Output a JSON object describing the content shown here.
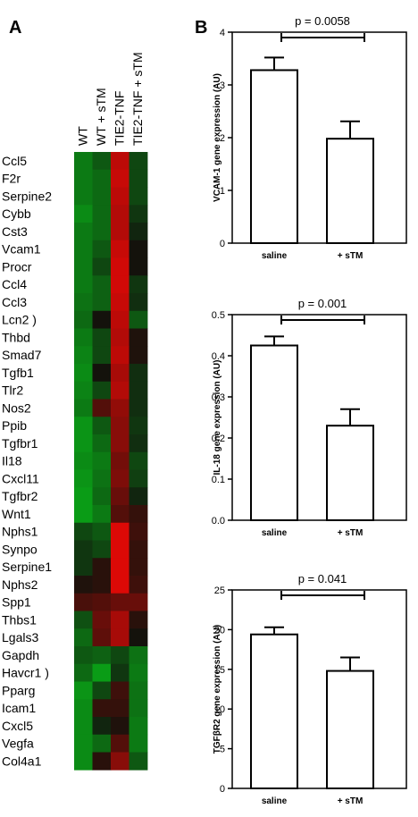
{
  "panel_labels": {
    "a": "A",
    "b": "B"
  },
  "colors": {
    "bar_fill": "#ffffff",
    "stroke": "#000000"
  },
  "heatmap": {
    "type": "heatmap",
    "columns": [
      "WT",
      "WT + sTM",
      "TIE2-TNF",
      "TIE2-TNF + sTM"
    ],
    "genes": [
      "Ccl5",
      "F2r",
      "Serpine2",
      "Cybb",
      "Cst3",
      "Vcam1",
      "Procr",
      "Ccl4",
      "Ccl3",
      "Lcn2 )",
      "Thbd",
      "Smad7",
      "Tgfb1",
      "Tlr2",
      "Nos2",
      "Ppib",
      "Tgfbr1",
      "Il18",
      "Cxcl11",
      "Tgfbr2",
      "Wnt1",
      "Nphs1",
      "Synpo",
      "Serpine1",
      "Nphs2",
      "Spp1",
      "Thbs1",
      "Lgals3",
      "Gapdh",
      "Havcr1 )",
      "Pparg",
      "Icam1",
      "Cxcl5",
      "Vegfa",
      "Col4a1"
    ],
    "values": [
      [
        -0.6,
        -0.4,
        0.8,
        -0.3
      ],
      [
        -0.6,
        -0.5,
        0.85,
        -0.3
      ],
      [
        -0.6,
        -0.5,
        0.8,
        -0.3
      ],
      [
        -0.7,
        -0.5,
        0.75,
        -0.2
      ],
      [
        -0.6,
        -0.5,
        0.75,
        -0.1
      ],
      [
        -0.6,
        -0.4,
        0.85,
        0.0
      ],
      [
        -0.6,
        -0.3,
        0.9,
        0.0
      ],
      [
        -0.6,
        -0.45,
        0.9,
        -0.2
      ],
      [
        -0.55,
        -0.45,
        0.85,
        -0.15
      ],
      [
        -0.5,
        0.0,
        0.8,
        -0.4
      ],
      [
        -0.6,
        -0.3,
        0.75,
        0.05
      ],
      [
        -0.65,
        -0.3,
        0.8,
        0.05
      ],
      [
        -0.7,
        0.0,
        0.7,
        -0.15
      ],
      [
        -0.65,
        -0.3,
        0.75,
        -0.15
      ],
      [
        -0.6,
        0.3,
        0.6,
        -0.15
      ],
      [
        -0.75,
        -0.4,
        0.55,
        -0.2
      ],
      [
        -0.75,
        -0.5,
        0.55,
        -0.15
      ],
      [
        -0.7,
        -0.6,
        0.45,
        -0.3
      ],
      [
        -0.75,
        -0.55,
        0.5,
        -0.25
      ],
      [
        -0.8,
        -0.5,
        0.4,
        -0.1
      ],
      [
        -0.8,
        -0.6,
        0.3,
        0.15
      ],
      [
        -0.3,
        -0.4,
        0.95,
        0.2
      ],
      [
        -0.2,
        -0.3,
        0.95,
        0.15
      ],
      [
        -0.2,
        0.1,
        0.95,
        0.15
      ],
      [
        0.05,
        0.1,
        0.95,
        0.2
      ],
      [
        0.25,
        0.3,
        0.4,
        0.4
      ],
      [
        -0.35,
        0.4,
        0.7,
        0.1
      ],
      [
        -0.5,
        0.35,
        0.7,
        0.0
      ],
      [
        -0.4,
        -0.45,
        -0.3,
        -0.55
      ],
      [
        -0.5,
        -0.8,
        -0.2,
        -0.6
      ],
      [
        -0.75,
        -0.3,
        0.2,
        -0.55
      ],
      [
        -0.7,
        0.15,
        0.15,
        -0.55
      ],
      [
        -0.7,
        -0.1,
        0.05,
        -0.6
      ],
      [
        -0.7,
        -0.5,
        0.3,
        -0.6
      ],
      [
        -0.7,
        0.1,
        0.55,
        -0.4
      ]
    ]
  },
  "chart_data": [
    {
      "type": "bar",
      "categories": [
        "saline",
        "+ sTM"
      ],
      "values": [
        3.28,
        1.98
      ],
      "errors": [
        0.24,
        0.33
      ],
      "ylabel": "VCAM-1 gene expression (AU)",
      "ylim": [
        0,
        4
      ],
      "yticks": [
        "0",
        "1",
        "2",
        "3",
        "4"
      ],
      "annotation": "p = 0.0058"
    },
    {
      "type": "bar",
      "categories": [
        "saline",
        "+ sTM"
      ],
      "values": [
        0.425,
        0.23
      ],
      "errors": [
        0.022,
        0.04
      ],
      "ylabel": "IL-18 gene expression (AU)",
      "ylim": [
        0,
        0.5
      ],
      "yticks": [
        "0.0",
        "0.1",
        "0.2",
        "0.3",
        "0.4",
        "0.5"
      ],
      "annotation": "p = 0.001"
    },
    {
      "type": "bar",
      "categories": [
        "saline",
        "+ sTM"
      ],
      "values": [
        19.4,
        14.8
      ],
      "errors": [
        0.9,
        1.7
      ],
      "ylabel": "TGFβR2 gene expression (AU)",
      "ylim": [
        0,
        25
      ],
      "yticks": [
        "0",
        "5",
        "10",
        "15",
        "20",
        "25"
      ],
      "annotation": "p = 0.041"
    }
  ]
}
